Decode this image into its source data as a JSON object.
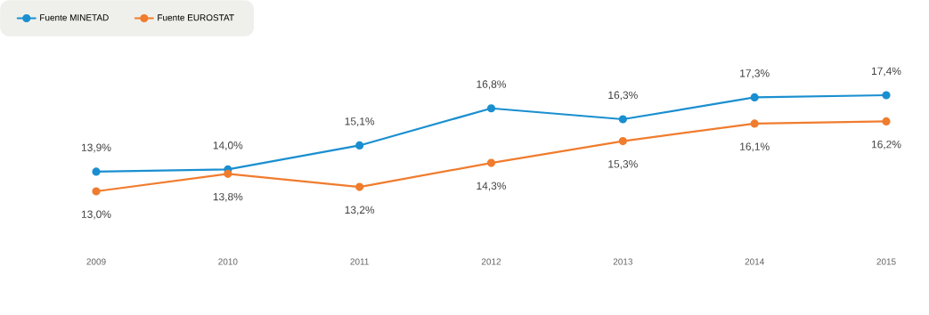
{
  "chart_data": {
    "type": "line",
    "categories": [
      "2009",
      "2010",
      "2011",
      "2012",
      "2013",
      "2014",
      "2015"
    ],
    "series": [
      {
        "name": "Fuente MINETAD",
        "color": "#1a8fd0",
        "values": [
          13.9,
          14.0,
          15.1,
          16.8,
          16.3,
          17.3,
          17.4
        ],
        "value_labels": [
          "13,9%",
          "14,0%",
          "15,1%",
          "16,8%",
          "16,3%",
          "17,3%",
          "17,4%"
        ]
      },
      {
        "name": "Fuente EUROSTAT",
        "color": "#f07c2e",
        "values": [
          13.0,
          13.8,
          13.2,
          14.3,
          15.3,
          16.1,
          16.2
        ],
        "value_labels": [
          "13,0%",
          "13,8%",
          "13,2%",
          "14,3%",
          "15,3%",
          "16,1%",
          "16,2%"
        ]
      }
    ],
    "legend": "top left",
    "marker": "circle"
  }
}
